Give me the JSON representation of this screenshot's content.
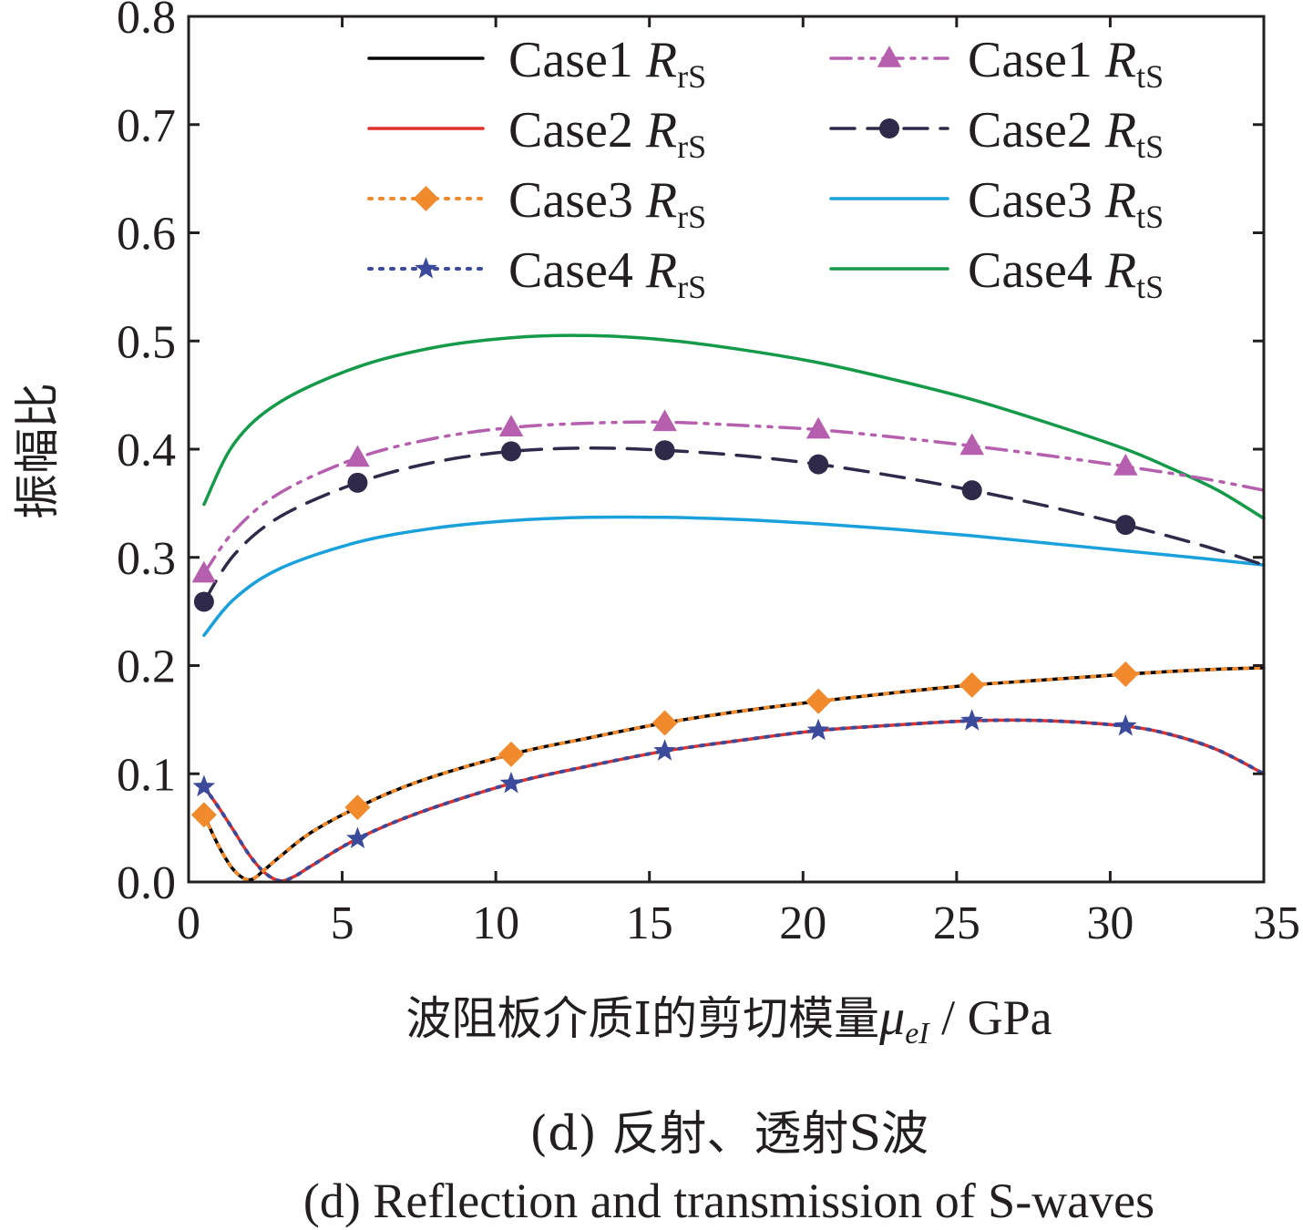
{
  "chart_data": {
    "type": "line",
    "xlabel_text": "波阻板介质I的剪切模量",
    "xlabel_symbol": "μ",
    "xlabel_sub": "eI",
    "xlabel_unit": " / GPa",
    "ylabel": "振幅比",
    "caption_cn": "(d) 反射、透射S波",
    "caption_en": "(d) Reflection and transmission of S-waves",
    "xlim": [
      0,
      35
    ],
    "ylim": [
      0.0,
      0.8
    ],
    "xticks": [
      0,
      5,
      10,
      15,
      20,
      25,
      30,
      35
    ],
    "yticks": [
      0.0,
      0.1,
      0.2,
      0.3,
      0.4,
      0.5,
      0.6,
      0.7,
      0.8
    ],
    "ytick_labels": [
      "0.0",
      "0.1",
      "0.2",
      "0.3",
      "0.4",
      "0.5",
      "0.6",
      "0.7",
      "0.8"
    ],
    "xtick_labels": [
      "0",
      "5",
      "10",
      "15",
      "20",
      "25",
      "30",
      "35"
    ],
    "legend_placement": "top",
    "grid": false,
    "series": [
      {
        "name": "Case1",
        "sym": "R",
        "sub": "rS",
        "color": "#000000",
        "style": "solid",
        "marker": "none",
        "x": [
          0.5,
          1.0,
          1.5,
          2.0,
          2.5,
          3.0,
          4.0,
          5.5,
          7.5,
          10.5,
          13,
          15.5,
          18,
          20.5,
          23,
          25.5,
          28,
          30.5,
          33,
          35
        ],
        "y": [
          0.062,
          0.032,
          0.01,
          0.002,
          0.012,
          0.024,
          0.046,
          0.069,
          0.093,
          0.118,
          0.133,
          0.147,
          0.158,
          0.167,
          0.175,
          0.182,
          0.187,
          0.192,
          0.196,
          0.198
        ]
      },
      {
        "name": "Case2",
        "sym": "R",
        "sub": "rS",
        "color": "#e0312b",
        "style": "solid",
        "marker": "none",
        "x": [
          0.5,
          1.0,
          1.5,
          2.0,
          2.5,
          3.0,
          3.5,
          4.0,
          5.5,
          7.5,
          10.5,
          13,
          15.5,
          18,
          20.5,
          23,
          25.5,
          28,
          30.5,
          32,
          33.5,
          35
        ],
        "y": [
          0.088,
          0.068,
          0.046,
          0.024,
          0.008,
          0.001,
          0.006,
          0.015,
          0.04,
          0.064,
          0.091,
          0.107,
          0.121,
          0.131,
          0.14,
          0.145,
          0.149,
          0.149,
          0.144,
          0.136,
          0.122,
          0.1
        ]
      },
      {
        "name": "Case3",
        "sym": "R",
        "sub": "rS",
        "color": "#f08a2c",
        "style": "dotted",
        "marker": "diamond",
        "marker_x": [
          0.5,
          5.5,
          10.5,
          15.5,
          20.5,
          25.5,
          30.5
        ],
        "marker_y": [
          0.062,
          0.069,
          0.118,
          0.147,
          0.167,
          0.182,
          0.192
        ],
        "x": [
          0.5,
          1.0,
          1.5,
          2.0,
          2.5,
          3.0,
          4.0,
          5.5,
          7.5,
          10.5,
          13,
          15.5,
          18,
          20.5,
          23,
          25.5,
          28,
          30.5,
          33,
          35
        ],
        "y": [
          0.062,
          0.032,
          0.01,
          0.002,
          0.012,
          0.024,
          0.046,
          0.069,
          0.093,
          0.118,
          0.133,
          0.147,
          0.158,
          0.167,
          0.175,
          0.182,
          0.187,
          0.192,
          0.196,
          0.198
        ]
      },
      {
        "name": "Case4",
        "sym": "R",
        "sub": "rS",
        "color": "#3b4a9a",
        "style": "dotted",
        "marker": "star",
        "marker_x": [
          0.5,
          5.5,
          10.5,
          15.5,
          20.5,
          25.5,
          30.5
        ],
        "marker_y": [
          0.088,
          0.04,
          0.091,
          0.121,
          0.14,
          0.149,
          0.144
        ],
        "x": [
          0.5,
          1.0,
          1.5,
          2.0,
          2.5,
          3.0,
          3.5,
          4.0,
          5.5,
          7.5,
          10.5,
          13,
          15.5,
          18,
          20.5,
          23,
          25.5,
          28,
          30.5,
          32,
          33.5,
          35
        ],
        "y": [
          0.088,
          0.068,
          0.046,
          0.024,
          0.008,
          0.001,
          0.006,
          0.015,
          0.04,
          0.064,
          0.091,
          0.107,
          0.121,
          0.131,
          0.14,
          0.145,
          0.149,
          0.149,
          0.144,
          0.136,
          0.122,
          0.1
        ]
      },
      {
        "name": "Case1",
        "sym": "R",
        "sub": "tS",
        "color": "#b65fae",
        "style": "dashdotdot",
        "marker": "triangle",
        "marker_x": [
          0.5,
          5.5,
          10.5,
          15.5,
          20.5,
          25.5,
          30.5
        ],
        "marker_y": [
          0.285,
          0.392,
          0.42,
          0.425,
          0.418,
          0.403,
          0.384
        ],
        "x": [
          0.5,
          1.5,
          3,
          5.5,
          8,
          10.5,
          13,
          15.5,
          18,
          20.5,
          23,
          25.5,
          28,
          30.5,
          33,
          35
        ],
        "y": [
          0.285,
          0.325,
          0.36,
          0.392,
          0.41,
          0.42,
          0.424,
          0.425,
          0.422,
          0.418,
          0.411,
          0.403,
          0.394,
          0.384,
          0.373,
          0.362
        ]
      },
      {
        "name": "Case2",
        "sym": "R",
        "sub": "tS",
        "color": "#302a4a",
        "style": "dashed",
        "marker": "circle",
        "marker_x": [
          0.5,
          5.5,
          10.5,
          15.5,
          20.5,
          25.5,
          30.5
        ],
        "marker_y": [
          0.259,
          0.369,
          0.398,
          0.399,
          0.386,
          0.362,
          0.33
        ],
        "x": [
          0.5,
          1.5,
          3,
          5.5,
          8,
          10.5,
          13,
          15.5,
          18,
          20.5,
          23,
          25.5,
          28,
          30.5,
          33,
          35
        ],
        "y": [
          0.259,
          0.303,
          0.338,
          0.369,
          0.388,
          0.398,
          0.401,
          0.399,
          0.394,
          0.386,
          0.375,
          0.362,
          0.347,
          0.33,
          0.311,
          0.293
        ]
      },
      {
        "name": "Case3",
        "sym": "R",
        "sub": "tS",
        "color": "#1aa1dc",
        "style": "solid",
        "marker": "none",
        "x": [
          0.5,
          1.5,
          3,
          5.5,
          8,
          10.5,
          13,
          15.5,
          18,
          20.5,
          23,
          25.5,
          28,
          30.5,
          33,
          35
        ],
        "y": [
          0.228,
          0.262,
          0.29,
          0.314,
          0.327,
          0.334,
          0.337,
          0.337,
          0.335,
          0.331,
          0.326,
          0.32,
          0.313,
          0.306,
          0.299,
          0.293
        ]
      },
      {
        "name": "Case4",
        "sym": "R",
        "sub": "tS",
        "color": "#149a49",
        "style": "solid",
        "marker": "none",
        "x": [
          0.5,
          1.5,
          3,
          5.5,
          8,
          10.5,
          13,
          15.5,
          18,
          20.5,
          23,
          25.5,
          28,
          30.5,
          32,
          33.5,
          35
        ],
        "y": [
          0.349,
          0.406,
          0.444,
          0.476,
          0.494,
          0.503,
          0.505,
          0.501,
          0.492,
          0.48,
          0.464,
          0.446,
          0.424,
          0.4,
          0.382,
          0.362,
          0.336
        ]
      }
    ]
  }
}
